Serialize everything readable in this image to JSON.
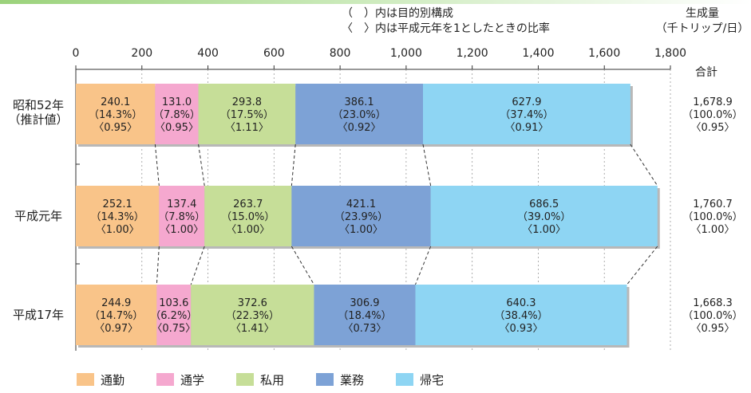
{
  "chart_data": {
    "type": "bar",
    "orientation": "horizontal",
    "stacked": true,
    "notes": [
      "（　）内は目的別構成",
      "〈　〉内は平成元年を1としたときの比率"
    ],
    "unit_title": "生成量",
    "unit": "（千トリップ/日）",
    "total_header": "合計",
    "xlim": [
      0,
      1800
    ],
    "xticks": [
      "0",
      "200",
      "400",
      "600",
      "800",
      "1,000",
      "1,200",
      "1,400",
      "1,600",
      "1,800"
    ],
    "xtick_values": [
      0,
      200,
      400,
      600,
      800,
      1000,
      1200,
      1400,
      1600,
      1800
    ],
    "categories": [
      {
        "label": "昭和52年",
        "sublabel": "（推計値）"
      },
      {
        "label": "平成元年",
        "sublabel": ""
      },
      {
        "label": "平成17年",
        "sublabel": ""
      }
    ],
    "series": [
      {
        "name": "通勤",
        "color": "#f9c489",
        "values": [
          240.1,
          252.1,
          244.9
        ],
        "shares": [
          "（14.3%）",
          "（14.3%）",
          "（14.7%）"
        ],
        "ratios": [
          "〈0.95〉",
          "〈1.00〉",
          "〈0.97〉"
        ]
      },
      {
        "name": "通学",
        "color": "#f5a8cf",
        "values": [
          131.0,
          137.4,
          103.6
        ],
        "shares": [
          "（7.8%）",
          "（7.8%）",
          "（6.2%）"
        ],
        "ratios": [
          "〈0.95〉",
          "〈1.00〉",
          "〈0.75〉"
        ]
      },
      {
        "name": "私用",
        "color": "#c6de98",
        "values": [
          293.8,
          263.7,
          372.6
        ],
        "shares": [
          "（17.5%）",
          "（15.0%）",
          "（22.3%）"
        ],
        "ratios": [
          "〈1.11〉",
          "〈1.00〉",
          "〈1.41〉"
        ]
      },
      {
        "name": "業務",
        "color": "#7da2d6",
        "values": [
          386.1,
          421.1,
          306.9
        ],
        "shares": [
          "（23.0%）",
          "（23.9%）",
          "（18.4%）"
        ],
        "ratios": [
          "〈0.92〉",
          "〈1.00〉",
          "〈0.73〉"
        ]
      },
      {
        "name": "帰宅",
        "color": "#8ed5f3",
        "values": [
          627.9,
          686.5,
          640.3
        ],
        "shares": [
          "（37.4%）",
          "（39.0%）",
          "（38.4%）"
        ],
        "ratios": [
          "〈0.91〉",
          "〈1.00〉",
          "〈0.93〉"
        ]
      }
    ],
    "totals": [
      {
        "value": "1,678.9",
        "share": "（100.0%）",
        "ratio": "〈0.95〉"
      },
      {
        "value": "1,760.7",
        "share": "（100.0%）",
        "ratio": "〈1.00〉"
      },
      {
        "value": "1,668.3",
        "share": "（100.0%）",
        "ratio": "〈0.95〉"
      }
    ],
    "grid": "vertical-dashed",
    "legend_position": "bottom-left"
  }
}
